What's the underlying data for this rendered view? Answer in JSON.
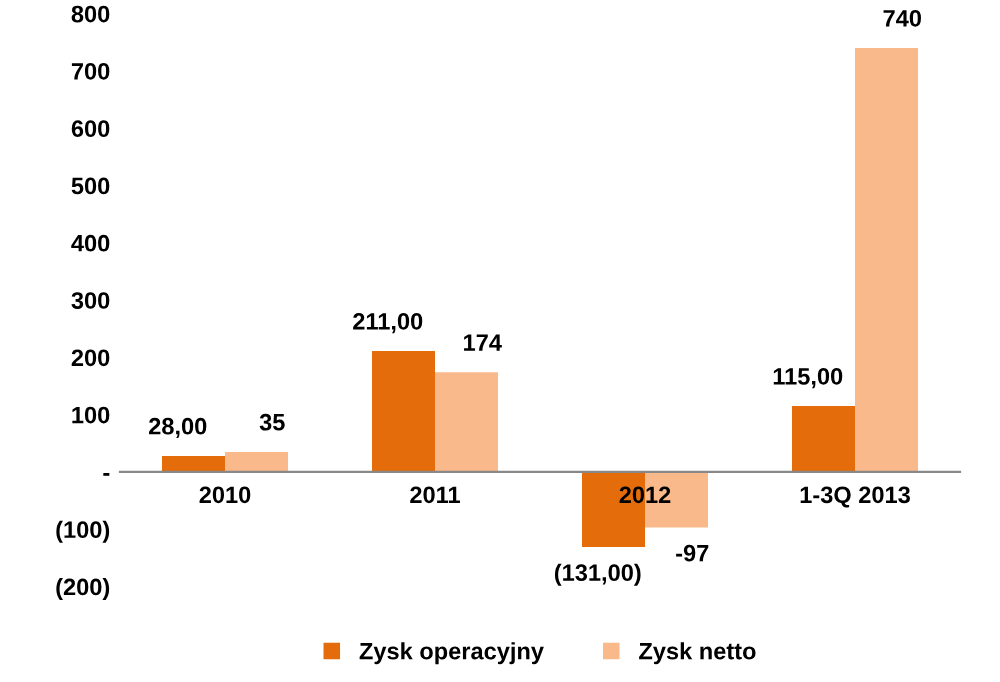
{
  "chart_data": {
    "type": "bar",
    "categories": [
      "2010",
      "2011",
      "2012",
      "1-3Q 2013"
    ],
    "series": [
      {
        "name": "Zysk operacyjny",
        "color": "#e46c0a",
        "values": [
          28,
          211,
          -131,
          115
        ],
        "value_labels": [
          "28,00",
          "211,00",
          "(131,00)",
          "115,00"
        ]
      },
      {
        "name": "Zysk netto",
        "color": "#fab98a",
        "values": [
          35,
          174,
          -97,
          740
        ],
        "value_labels": [
          "35",
          "174",
          "-97",
          "740"
        ]
      }
    ],
    "ylim": [
      -200,
      800
    ],
    "yticks": [
      {
        "value": -200,
        "label": "(200)"
      },
      {
        "value": -100,
        "label": "(100)"
      },
      {
        "value": 0,
        "label": "-"
      },
      100,
      200,
      300,
      400,
      500,
      600,
      700,
      800
    ],
    "grid": false,
    "legend": "bottom"
  }
}
